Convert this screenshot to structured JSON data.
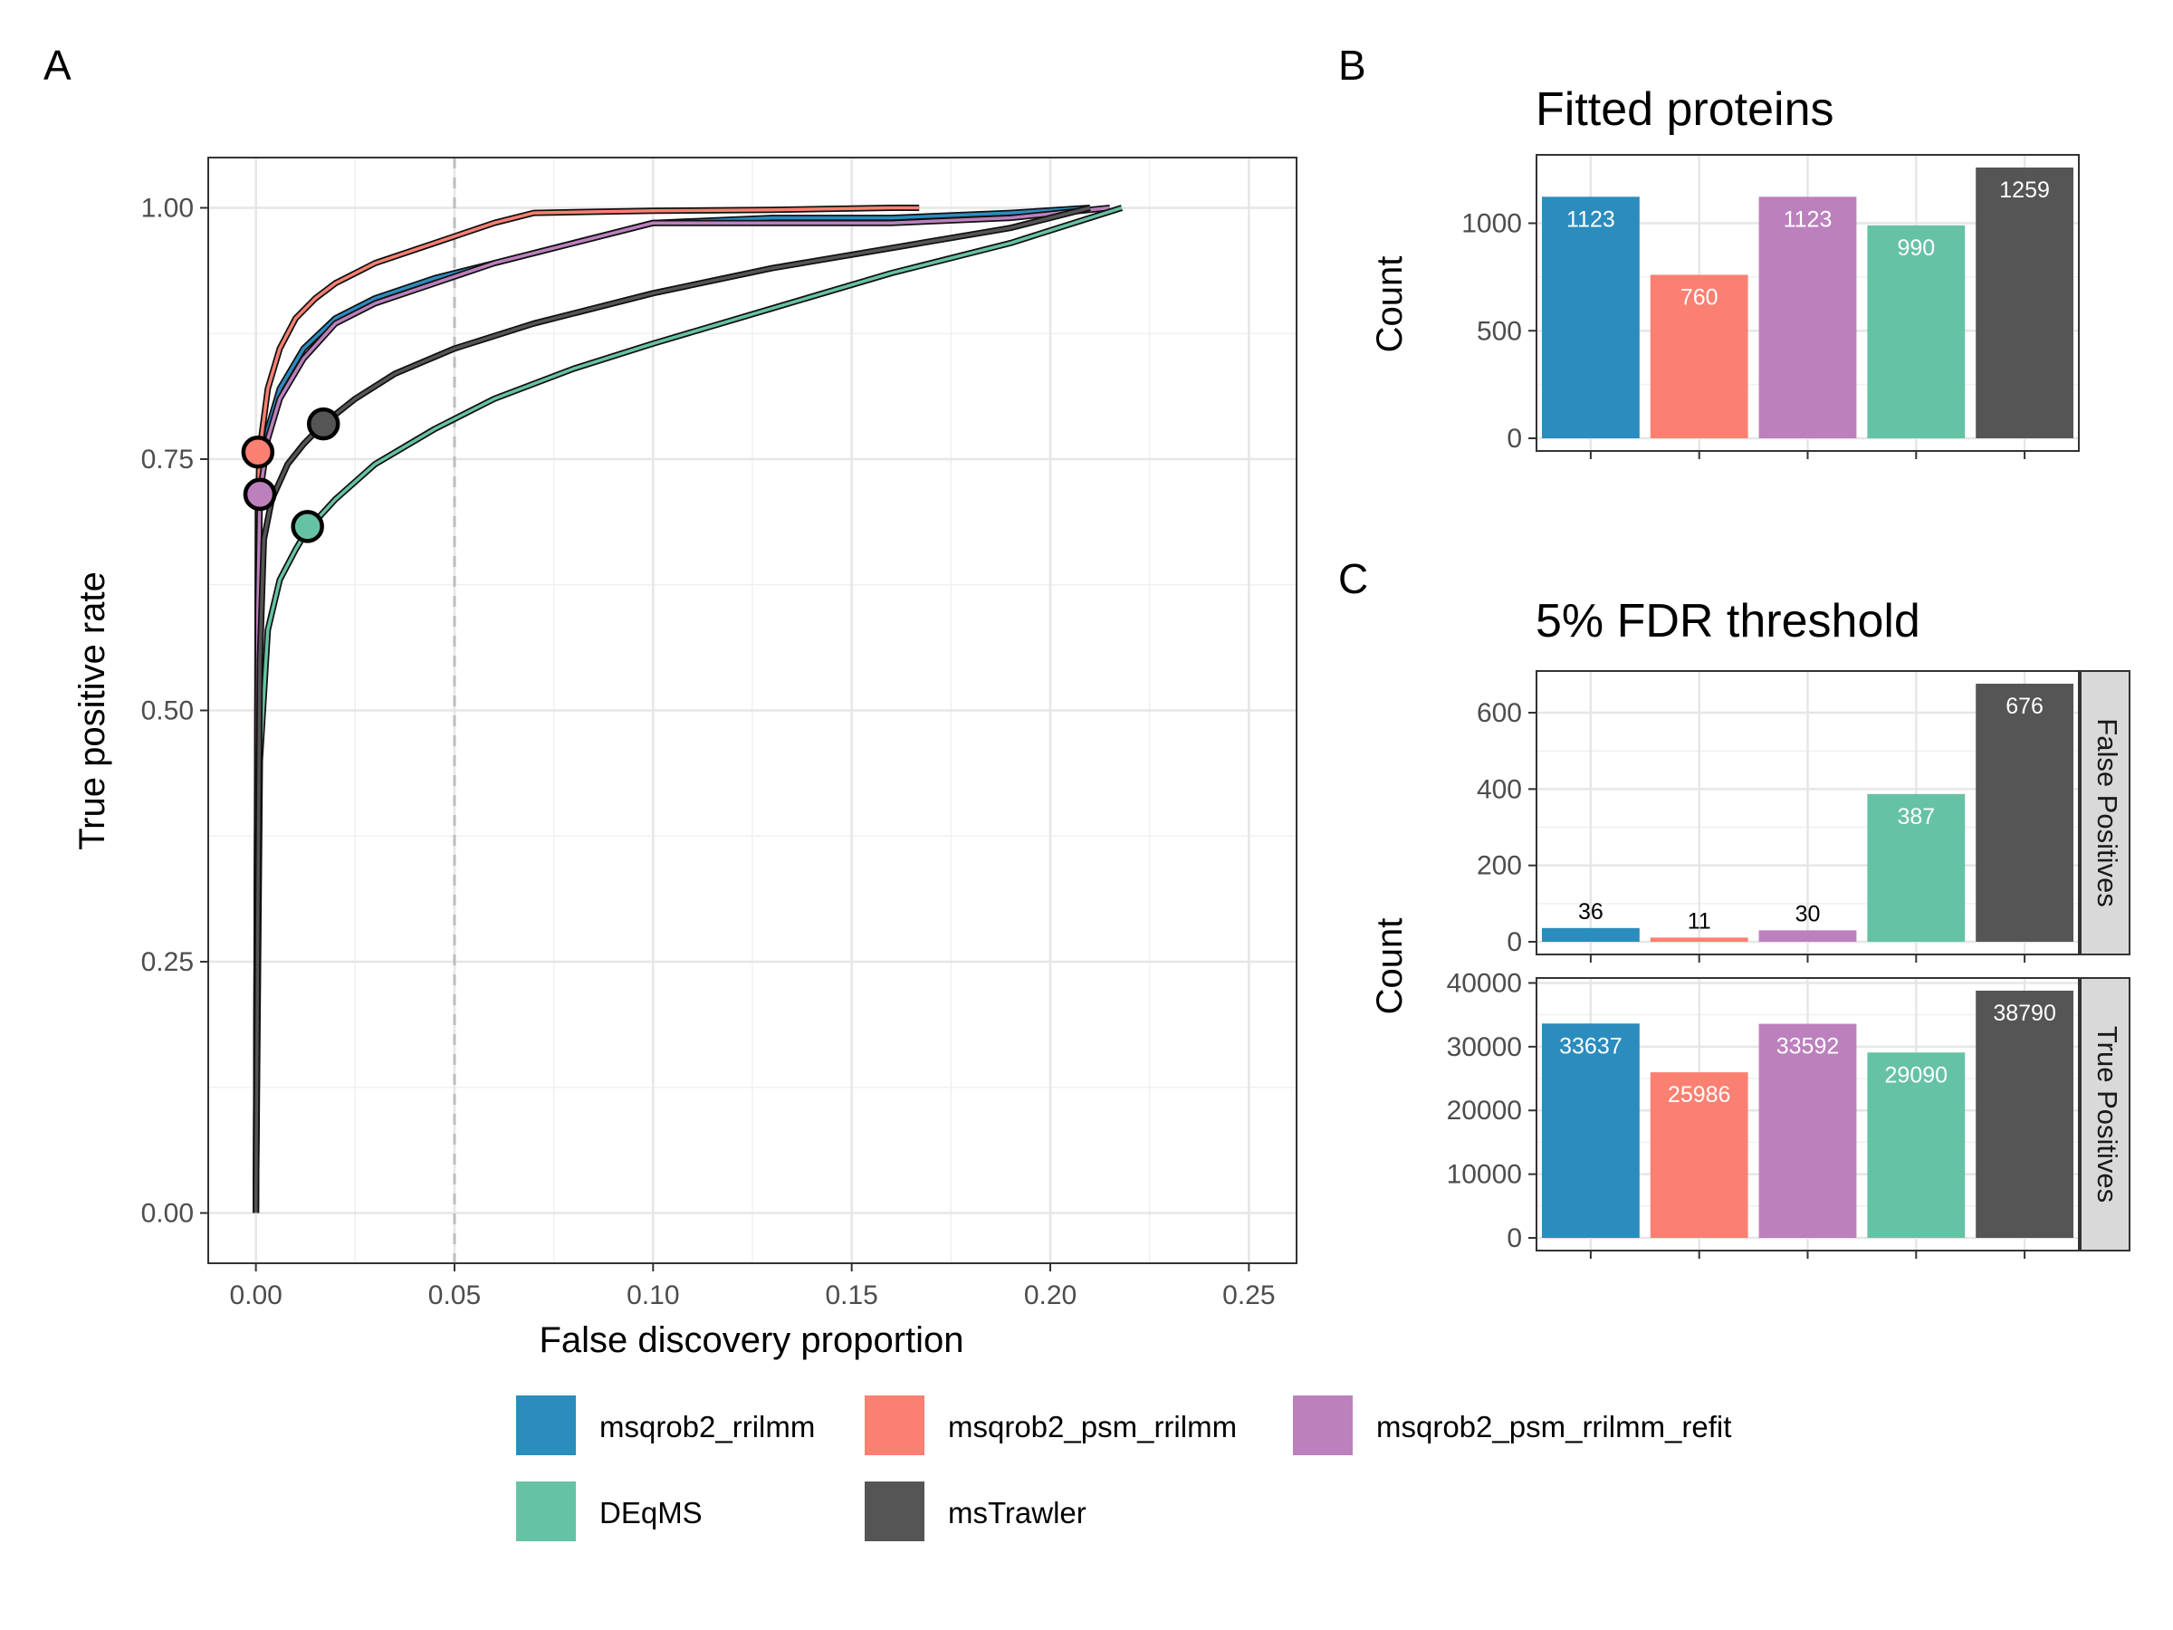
{
  "colors": {
    "msqrob2_rrilmm": "#2b8cbe",
    "msqrob2_psm_rrilmm": "#fa8072",
    "msqrob2_psm_rrilmm_refit": "#bc80bd",
    "DEqMS": "#66c2a5",
    "msTrawler": "#555555"
  },
  "chart_data": [
    {
      "panel": "A",
      "type": "line",
      "title": "",
      "xlabel": "False discovery proportion",
      "ylabel": "True positive rate",
      "xlim": [
        -0.012,
        0.262
      ],
      "ylim": [
        -0.05,
        1.05
      ],
      "xticks": [
        0.0,
        0.05,
        0.1,
        0.15,
        0.2,
        0.25
      ],
      "xtick_labels": [
        "0.00",
        "0.05",
        "0.10",
        "0.15",
        "0.20",
        "0.25"
      ],
      "yticks": [
        0.0,
        0.25,
        0.5,
        0.75,
        1.0
      ],
      "ytick_labels": [
        "0.00",
        "0.25",
        "0.50",
        "0.75",
        "1.00"
      ],
      "vline": 0.05,
      "grid": true,
      "series": [
        {
          "name": "msqrob2_rrilmm",
          "x": [
            0,
            0.0005,
            0.001,
            0.003,
            0.006,
            0.012,
            0.02,
            0.03,
            0.045,
            0.06,
            0.08,
            0.1,
            0.13,
            0.16,
            0.19,
            0.21
          ],
          "y": [
            0.0,
            0.6,
            0.72,
            0.78,
            0.82,
            0.86,
            0.89,
            0.91,
            0.93,
            0.945,
            0.965,
            0.985,
            0.99,
            0.99,
            0.995,
            1.0
          ]
        },
        {
          "name": "msqrob2_psm_rrilmm",
          "x": [
            0,
            0.0005,
            0.001,
            0.003,
            0.006,
            0.01,
            0.015,
            0.02,
            0.03,
            0.045,
            0.06,
            0.07,
            0.1,
            0.13,
            0.16,
            0.167
          ],
          "y": [
            0.0,
            0.7,
            0.76,
            0.82,
            0.86,
            0.89,
            0.91,
            0.925,
            0.945,
            0.965,
            0.985,
            0.995,
            0.997,
            0.998,
            1.0,
            1.0
          ]
        },
        {
          "name": "msqrob2_psm_rrilmm_refit",
          "x": [
            0,
            0.0005,
            0.001,
            0.003,
            0.006,
            0.012,
            0.02,
            0.03,
            0.045,
            0.06,
            0.08,
            0.1,
            0.13,
            0.16,
            0.19,
            0.215
          ],
          "y": [
            0.0,
            0.6,
            0.715,
            0.77,
            0.81,
            0.85,
            0.885,
            0.905,
            0.925,
            0.945,
            0.965,
            0.985,
            0.985,
            0.985,
            0.99,
            1.0
          ]
        },
        {
          "name": "DEqMS",
          "x": [
            0,
            0.001,
            0.003,
            0.006,
            0.01,
            0.013,
            0.02,
            0.03,
            0.045,
            0.06,
            0.08,
            0.1,
            0.13,
            0.16,
            0.19,
            0.218
          ],
          "y": [
            0.0,
            0.45,
            0.58,
            0.63,
            0.66,
            0.68,
            0.71,
            0.745,
            0.78,
            0.81,
            0.84,
            0.865,
            0.9,
            0.935,
            0.965,
            1.0
          ]
        },
        {
          "name": "msTrawler",
          "x": [
            0,
            0.0005,
            0.001,
            0.002,
            0.004,
            0.008,
            0.012,
            0.017,
            0.025,
            0.035,
            0.05,
            0.07,
            0.1,
            0.13,
            0.16,
            0.19,
            0.21
          ],
          "y": [
            0.0,
            0.3,
            0.55,
            0.67,
            0.71,
            0.745,
            0.765,
            0.785,
            0.81,
            0.835,
            0.86,
            0.885,
            0.915,
            0.94,
            0.96,
            0.98,
            1.0
          ]
        }
      ],
      "points": [
        {
          "series": "msqrob2_psm_rrilmm",
          "x": 0.0005,
          "y": 0.757
        },
        {
          "series": "msqrob2_rrilmm",
          "x": 0.001,
          "y": 0.715
        },
        {
          "series": "msqrob2_psm_rrilmm_refit",
          "x": 0.001,
          "y": 0.715
        },
        {
          "series": "msTrawler",
          "x": 0.017,
          "y": 0.785
        },
        {
          "series": "DEqMS",
          "x": 0.013,
          "y": 0.683
        }
      ]
    },
    {
      "panel": "B",
      "type": "bar",
      "title": "Fitted proteins",
      "ylabel": "Count",
      "ylim": [
        0,
        1259
      ],
      "yticks": [
        0,
        500,
        1000
      ],
      "ytick_labels": [
        "0",
        "500",
        "1000"
      ],
      "categories": [
        "msqrob2_rrilmm",
        "msqrob2_psm_rrilmm",
        "msqrob2_psm_rrilmm_refit",
        "DEqMS",
        "msTrawler"
      ],
      "values": [
        1123,
        760,
        1123,
        990,
        1259
      ],
      "value_labels": [
        "1123",
        "760",
        "1123",
        "990",
        "1259"
      ]
    },
    {
      "panel": "C",
      "type": "bar",
      "title": "5% FDR threshold",
      "ylabel": "Count",
      "categories": [
        "msqrob2_rrilmm",
        "msqrob2_psm_rrilmm",
        "msqrob2_psm_rrilmm_refit",
        "DEqMS",
        "msTrawler"
      ],
      "facets": [
        {
          "strip": "False Positives",
          "values": [
            36,
            11,
            30,
            387,
            676
          ],
          "value_labels": [
            "36",
            "11",
            "30",
            "387",
            "676"
          ],
          "ylim": [
            0,
            676
          ],
          "yticks": [
            0,
            200,
            400,
            600
          ],
          "ytick_labels": [
            "0",
            "200",
            "400",
            "600"
          ]
        },
        {
          "strip": "True Positives",
          "values": [
            33637,
            25986,
            33592,
            29090,
            38790
          ],
          "value_labels": [
            "33637",
            "25986",
            "33592",
            "29090",
            "38790"
          ],
          "ylim": [
            0,
            38790
          ],
          "yticks": [
            0,
            10000,
            20000,
            30000,
            40000
          ],
          "ytick_labels": [
            "0",
            "10000",
            "20000",
            "30000",
            "40000"
          ]
        }
      ]
    }
  ],
  "legend": {
    "position": "bottom",
    "items": [
      "msqrob2_rrilmm",
      "msqrob2_psm_rrilmm",
      "msqrob2_psm_rrilmm_refit",
      "DEqMS",
      "msTrawler"
    ]
  },
  "panel_letters": [
    "A",
    "B",
    "C"
  ]
}
